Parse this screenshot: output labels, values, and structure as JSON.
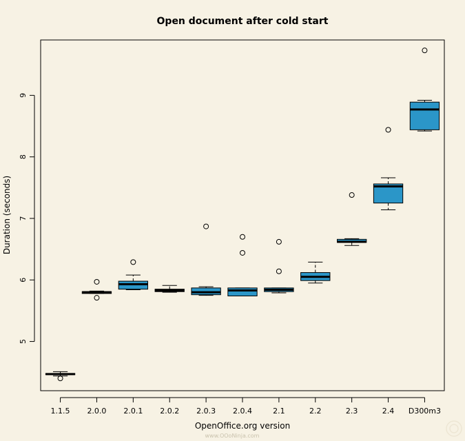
{
  "footer": {
    "credit": "www.OOoNinja.com"
  },
  "colors": {
    "box_fill": "#2b96c8",
    "background": "#f7f2e4"
  },
  "chart_data": {
    "type": "box",
    "title": "Open document after cold start",
    "xlabel": "OpenOffice.org version",
    "ylabel": "Duration (seconds)",
    "ylim": [
      4.2,
      9.9
    ],
    "yticks": [
      5,
      6,
      7,
      8,
      9
    ],
    "grid": false,
    "legend": "none",
    "categories": [
      "1.1.5",
      "2.0.0",
      "2.0.1",
      "2.0.2",
      "2.0.3",
      "2.0.4",
      "2.1",
      "2.2",
      "2.3",
      "2.4",
      "D300m3"
    ],
    "boxes": [
      {
        "category": "1.1.5",
        "whisker_low": 4.44,
        "q1": 4.46,
        "median": 4.47,
        "q3": 4.48,
        "whisker_high": 4.51,
        "outliers": [
          4.4
        ]
      },
      {
        "category": "2.0.0",
        "whisker_low": 5.78,
        "q1": 5.78,
        "median": 5.8,
        "q3": 5.81,
        "whisker_high": 5.82,
        "outliers": [
          5.97,
          5.71
        ]
      },
      {
        "category": "2.0.1",
        "whisker_low": 5.84,
        "q1": 5.85,
        "median": 5.93,
        "q3": 5.98,
        "whisker_high": 6.08,
        "outliers": [
          6.29
        ]
      },
      {
        "category": "2.0.2",
        "whisker_low": 5.8,
        "q1": 5.81,
        "median": 5.83,
        "q3": 5.85,
        "whisker_high": 5.91,
        "outliers": []
      },
      {
        "category": "2.0.3",
        "whisker_low": 5.75,
        "q1": 5.76,
        "median": 5.8,
        "q3": 5.87,
        "whisker_high": 5.89,
        "outliers": [
          6.87
        ]
      },
      {
        "category": "2.0.4",
        "whisker_low": 5.74,
        "q1": 5.74,
        "median": 5.83,
        "q3": 5.87,
        "whisker_high": 5.87,
        "outliers": [
          6.7,
          6.44
        ]
      },
      {
        "category": "2.1",
        "whisker_low": 5.79,
        "q1": 5.81,
        "median": 5.84,
        "q3": 5.87,
        "whisker_high": 5.87,
        "outliers": [
          6.62,
          6.14
        ]
      },
      {
        "category": "2.2",
        "whisker_low": 5.95,
        "q1": 5.99,
        "median": 6.05,
        "q3": 6.12,
        "whisker_high": 6.29,
        "outliers": []
      },
      {
        "category": "2.3",
        "whisker_low": 6.56,
        "q1": 6.61,
        "median": 6.62,
        "q3": 6.66,
        "whisker_high": 6.67,
        "outliers": [
          7.38
        ]
      },
      {
        "category": "2.4",
        "whisker_low": 7.14,
        "q1": 7.25,
        "median": 7.52,
        "q3": 7.56,
        "whisker_high": 7.66,
        "outliers": [
          8.44
        ]
      },
      {
        "category": "D300m3",
        "whisker_low": 8.42,
        "q1": 8.44,
        "median": 8.77,
        "q3": 8.89,
        "whisker_high": 8.92,
        "outliers": [
          9.73
        ]
      }
    ]
  }
}
